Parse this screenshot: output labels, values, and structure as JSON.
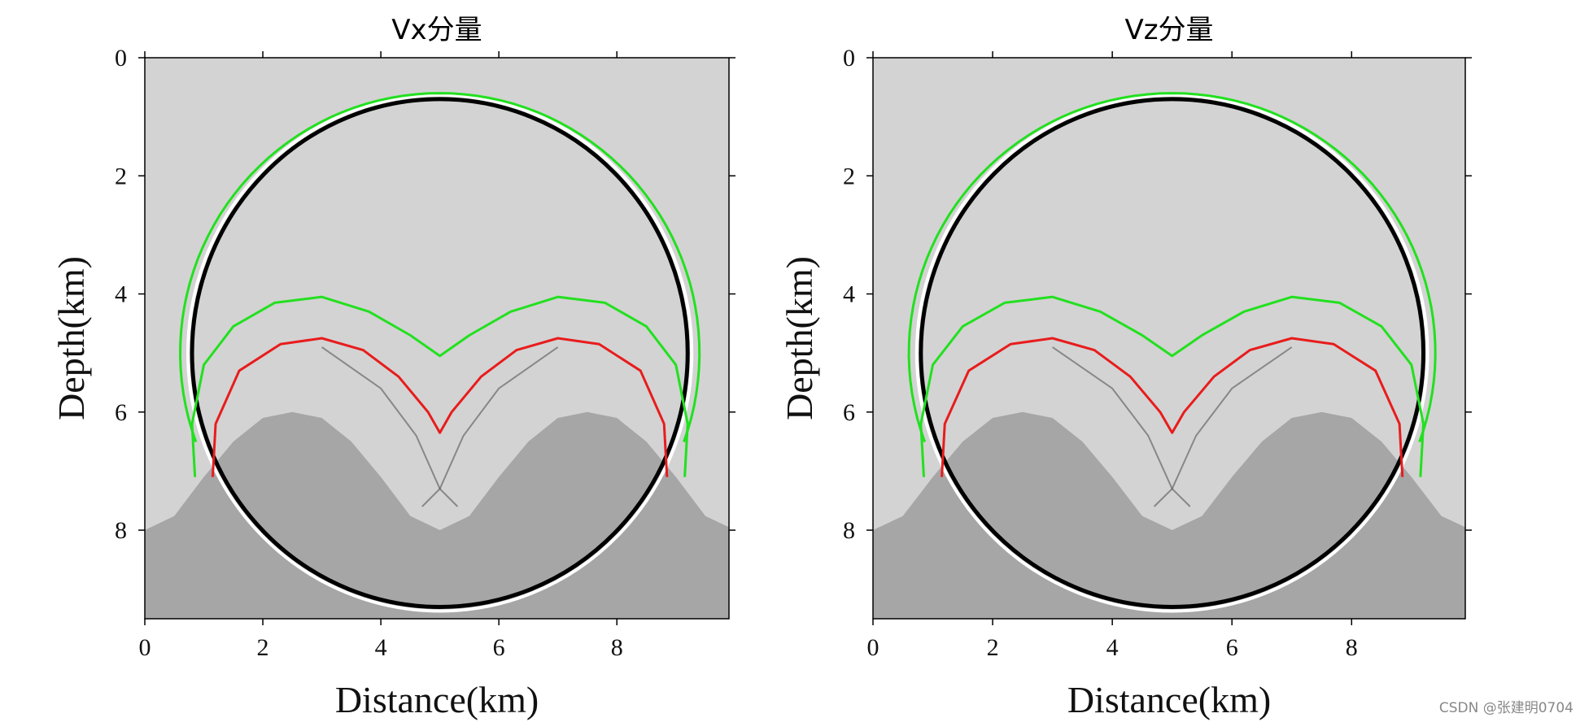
{
  "watermark": "CSDN @张建明0704",
  "chart_data": [
    {
      "type": "wavefield_snapshot",
      "title": "Vx分量",
      "xlabel": "Distance(km)",
      "ylabel": "Depth(km)",
      "xlim": [
        0,
        9.9
      ],
      "ylim": [
        0,
        9.5
      ],
      "xticks": [
        0,
        2,
        4,
        6,
        8
      ],
      "yticks": [
        0,
        2,
        4,
        6,
        8
      ],
      "interface": {
        "description_value": "sinusoidal",
        "points": [
          [
            0,
            8.0
          ],
          [
            0.5,
            7.76
          ],
          [
            1,
            7.1
          ],
          [
            1.5,
            6.5
          ],
          [
            2,
            6.1
          ],
          [
            2.5,
            6.0
          ],
          [
            3,
            6.1
          ],
          [
            3.5,
            6.5
          ],
          [
            4,
            7.1
          ],
          [
            4.5,
            7.76
          ],
          [
            5,
            8.0
          ],
          [
            5.5,
            7.76
          ],
          [
            6,
            7.1
          ],
          [
            6.5,
            6.5
          ],
          [
            7,
            6.1
          ],
          [
            7.5,
            6.0
          ],
          [
            8,
            6.1
          ],
          [
            8.5,
            6.5
          ],
          [
            9,
            7.1
          ],
          [
            9.5,
            7.76
          ],
          [
            9.9,
            7.95
          ]
        ]
      },
      "colors": {
        "upper": "#d3d3d3",
        "lower": "#a6a6a6",
        "green": "#22e01f",
        "red": "#e81c1c"
      },
      "green_direct_wave": {
        "center": [
          5.0,
          5.0
        ],
        "radius_x": 4.4,
        "radius_y": 4.4,
        "start_angle_deg": 160,
        "end_angle_deg": 380
      },
      "green_reflection": [
        [
          0.85,
          7.1
        ],
        [
          0.8,
          6.2
        ],
        [
          1.0,
          5.2
        ],
        [
          1.5,
          4.55
        ],
        [
          2.2,
          4.15
        ],
        [
          3.0,
          4.05
        ],
        [
          3.8,
          4.3
        ],
        [
          4.5,
          4.7
        ],
        [
          5.0,
          5.05
        ],
        [
          5.5,
          4.7
        ],
        [
          6.2,
          4.3
        ],
        [
          7.0,
          4.05
        ],
        [
          7.8,
          4.15
        ],
        [
          8.5,
          4.55
        ],
        [
          9.0,
          5.2
        ],
        [
          9.2,
          6.2
        ],
        [
          9.15,
          7.1
        ]
      ],
      "red_wave": [
        [
          1.15,
          7.1
        ],
        [
          1.2,
          6.2
        ],
        [
          1.6,
          5.3
        ],
        [
          2.3,
          4.85
        ],
        [
          3.0,
          4.75
        ],
        [
          3.7,
          4.95
        ],
        [
          4.3,
          5.4
        ],
        [
          4.8,
          6.0
        ],
        [
          5.0,
          6.35
        ],
        [
          5.2,
          6.0
        ],
        [
          5.7,
          5.4
        ],
        [
          6.3,
          4.95
        ],
        [
          7.0,
          4.75
        ],
        [
          7.7,
          4.85
        ],
        [
          8.4,
          5.3
        ],
        [
          8.8,
          6.2
        ],
        [
          8.85,
          7.1
        ]
      ],
      "black_direct_wave": {
        "center": [
          5.0,
          5.0
        ],
        "radius_x": 4.2,
        "radius_y": 4.3
      }
    },
    {
      "type": "wavefield_snapshot",
      "title": "Vz分量",
      "xlabel": "Distance(km)",
      "ylabel": "Depth(km)",
      "xlim": [
        0,
        9.9
      ],
      "ylim": [
        0,
        9.5
      ],
      "xticks": [
        0,
        2,
        4,
        6,
        8
      ],
      "yticks": [
        0,
        2,
        4,
        6,
        8
      ],
      "interface": {
        "description_value": "sinusoidal",
        "points": [
          [
            0,
            8.0
          ],
          [
            0.5,
            7.76
          ],
          [
            1,
            7.1
          ],
          [
            1.5,
            6.5
          ],
          [
            2,
            6.1
          ],
          [
            2.5,
            6.0
          ],
          [
            3,
            6.1
          ],
          [
            3.5,
            6.5
          ],
          [
            4,
            7.1
          ],
          [
            4.5,
            7.76
          ],
          [
            5,
            8.0
          ],
          [
            5.5,
            7.76
          ],
          [
            6,
            7.1
          ],
          [
            6.5,
            6.5
          ],
          [
            7,
            6.1
          ],
          [
            7.5,
            6.0
          ],
          [
            8,
            6.1
          ],
          [
            8.5,
            6.5
          ],
          [
            9,
            7.1
          ],
          [
            9.5,
            7.76
          ],
          [
            9.9,
            7.95
          ]
        ]
      },
      "colors": {
        "upper": "#d3d3d3",
        "lower": "#a6a6a6",
        "green": "#22e01f",
        "red": "#e81c1c"
      },
      "green_direct_wave": {
        "center": [
          5.0,
          5.0
        ],
        "radius_x": 4.4,
        "radius_y": 4.4,
        "start_angle_deg": 160,
        "end_angle_deg": 380
      },
      "green_reflection": [
        [
          0.85,
          7.1
        ],
        [
          0.8,
          6.2
        ],
        [
          1.0,
          5.2
        ],
        [
          1.5,
          4.55
        ],
        [
          2.2,
          4.15
        ],
        [
          3.0,
          4.05
        ],
        [
          3.8,
          4.3
        ],
        [
          4.5,
          4.7
        ],
        [
          5.0,
          5.05
        ],
        [
          5.5,
          4.7
        ],
        [
          6.2,
          4.3
        ],
        [
          7.0,
          4.05
        ],
        [
          7.8,
          4.15
        ],
        [
          8.5,
          4.55
        ],
        [
          9.0,
          5.2
        ],
        [
          9.2,
          6.2
        ],
        [
          9.15,
          7.1
        ]
      ],
      "red_wave": [
        [
          1.15,
          7.1
        ],
        [
          1.2,
          6.2
        ],
        [
          1.6,
          5.3
        ],
        [
          2.3,
          4.85
        ],
        [
          3.0,
          4.75
        ],
        [
          3.7,
          4.95
        ],
        [
          4.3,
          5.4
        ],
        [
          4.8,
          6.0
        ],
        [
          5.0,
          6.35
        ],
        [
          5.2,
          6.0
        ],
        [
          5.7,
          5.4
        ],
        [
          6.3,
          4.95
        ],
        [
          7.0,
          4.75
        ],
        [
          7.7,
          4.85
        ],
        [
          8.4,
          5.3
        ],
        [
          8.8,
          6.2
        ],
        [
          8.85,
          7.1
        ]
      ],
      "black_direct_wave": {
        "center": [
          5.0,
          5.0
        ],
        "radius_x": 4.2,
        "radius_y": 4.3
      }
    }
  ]
}
